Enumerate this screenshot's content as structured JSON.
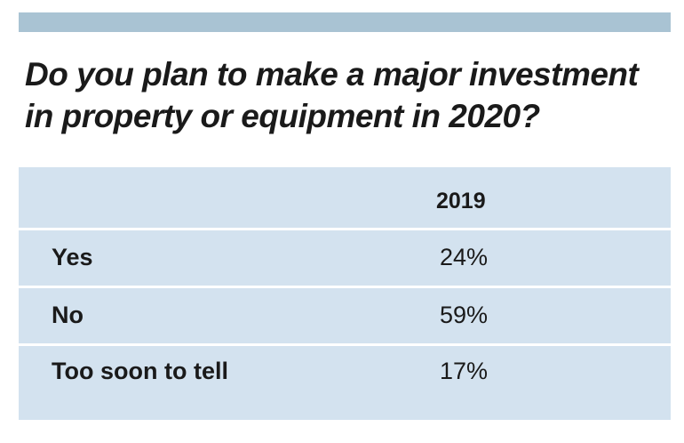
{
  "title": "Do you plan to make a major investment in property or equipment in 2020?",
  "colors": {
    "top_bar": "#a9c3d3",
    "table_background": "#d3e2ef",
    "row_divider": "#ffffff",
    "text": "#1a1a1a"
  },
  "chart_data": {
    "type": "table",
    "title": "Do you plan to make a major investment in property or equipment in 2020?",
    "columns": [
      "",
      "2019"
    ],
    "rows": [
      {
        "label": "Yes",
        "value": "24%"
      },
      {
        "label": "No",
        "value": "59%"
      },
      {
        "label": "Too soon to tell",
        "value": "17%"
      }
    ],
    "categories": [
      "Yes",
      "No",
      "Too soon to tell"
    ],
    "series": [
      {
        "name": "2019",
        "values": [
          24,
          59,
          17
        ]
      }
    ],
    "unit": "%"
  }
}
